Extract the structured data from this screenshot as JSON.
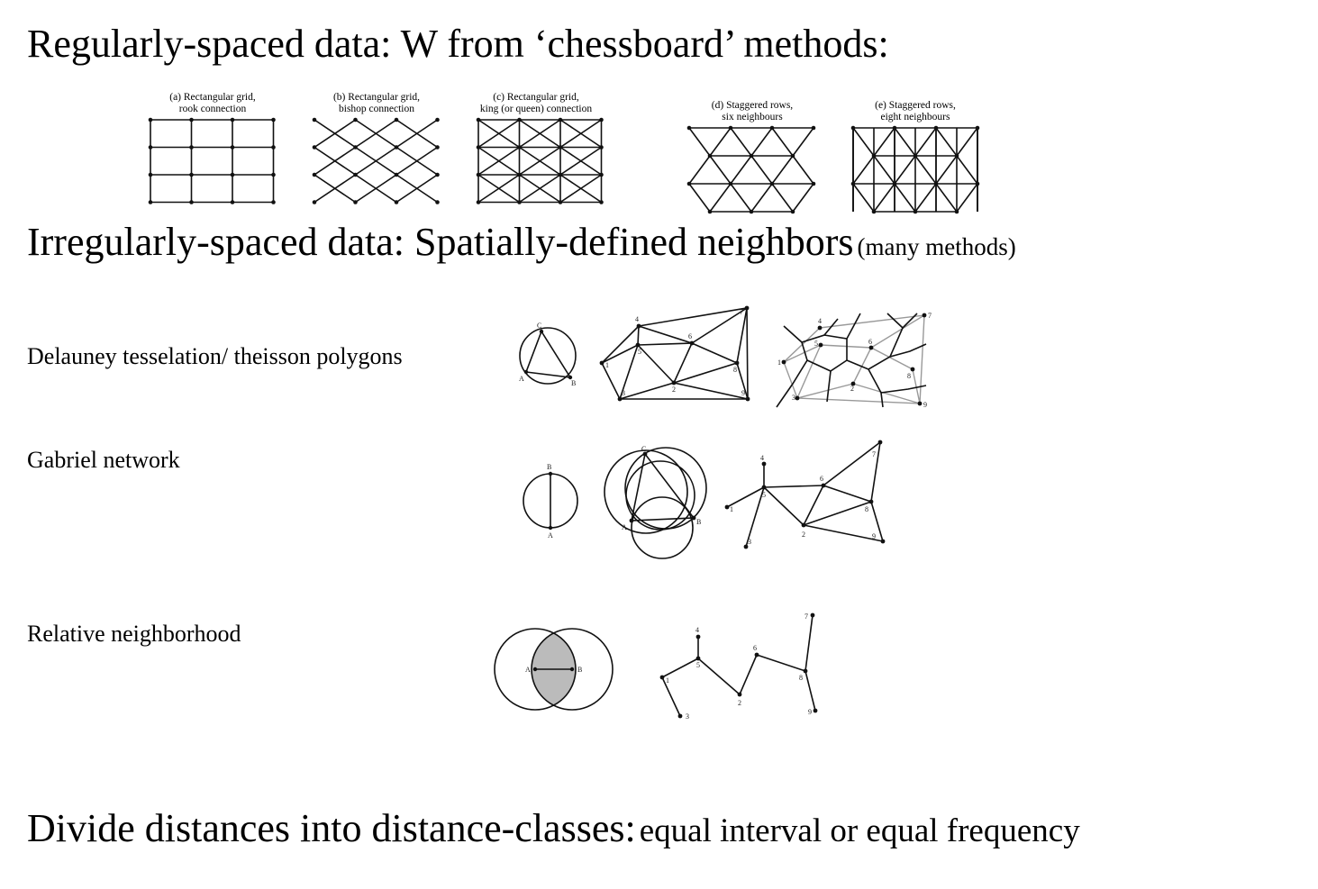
{
  "headings": {
    "regular": "Regularly-spaced data: W from ‘chessboard’ methods:",
    "irregular_main": "Irregularly-spaced data: Spatially-defined neighbors",
    "irregular_sub": "(many methods)",
    "divide_main": "Divide distances into distance-classes:",
    "divide_sub": "equal interval or equal frequency"
  },
  "grid_captions": {
    "a": [
      "(a) Rectangular grid,",
      "rook connection"
    ],
    "b": [
      "(b) Rectangular grid,",
      "bishop connection"
    ],
    "c": [
      "(c) Rectangular grid,",
      "king (or queen) connection"
    ],
    "d": [
      "(d) Staggered rows,",
      "six neighbours"
    ],
    "e": [
      "(e) Staggered rows,",
      "eight neighbours"
    ]
  },
  "methods": {
    "delaunay": "Delauney tesselation/ theisson polygons",
    "gabriel": "Gabriel network",
    "relative": "Relative neighborhood"
  },
  "point_labels": {
    "circle": [
      "C",
      "A",
      "B"
    ],
    "network": [
      "1",
      "2",
      "3",
      "4",
      "5",
      "6",
      "7",
      "8",
      "9"
    ]
  }
}
